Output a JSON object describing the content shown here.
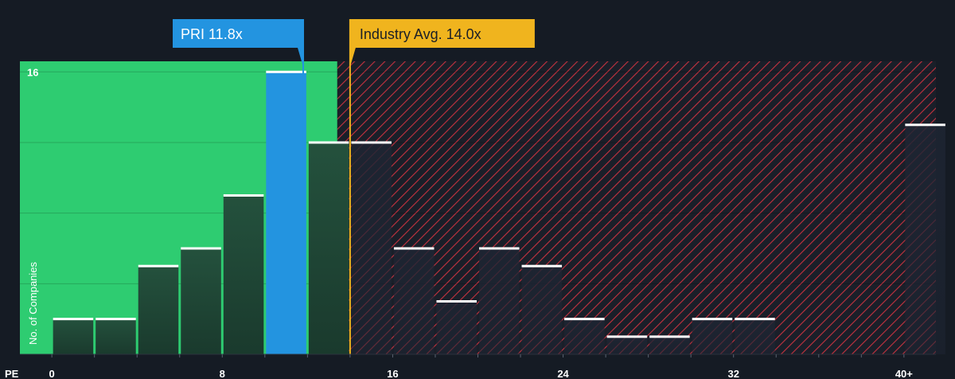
{
  "chart_data": {
    "type": "bar",
    "xlabel": "PE",
    "ylabel": "No. of Companies",
    "x_ticks": [
      "0",
      "8",
      "16",
      "24",
      "32",
      "40+"
    ],
    "y_ticks": [
      "16"
    ],
    "xlim": [
      -1.5,
      41.5
    ],
    "ylim": [
      0,
      16.6
    ],
    "bin_width": 2,
    "bins": [
      {
        "x0": 0,
        "value": 2
      },
      {
        "x0": 2,
        "value": 2
      },
      {
        "x0": 4,
        "value": 5
      },
      {
        "x0": 6,
        "value": 6
      },
      {
        "x0": 8,
        "value": 9
      },
      {
        "x0": 10,
        "value": 16
      },
      {
        "x0": 12,
        "value": 12
      },
      {
        "x0": 14,
        "value": 12
      },
      {
        "x0": 16,
        "value": 6
      },
      {
        "x0": 18,
        "value": 3
      },
      {
        "x0": 20,
        "value": 6
      },
      {
        "x0": 22,
        "value": 5
      },
      {
        "x0": 24,
        "value": 2
      },
      {
        "x0": 26,
        "value": 1
      },
      {
        "x0": 28,
        "value": 1
      },
      {
        "x0": 30,
        "value": 2
      },
      {
        "x0": 32,
        "value": 2
      },
      {
        "x0": 34,
        "value": 0
      },
      {
        "x0": 36,
        "value": 0
      },
      {
        "x0": 38,
        "value": 0
      },
      {
        "x0": 40,
        "value": 13
      }
    ],
    "highlight_bin_x0": 10,
    "company": {
      "label": "PRI 11.8x",
      "pe": 11.8
    },
    "industry_avg": {
      "label": "Industry Avg. 14.0x",
      "pe": 14.0
    },
    "fair_zone_max_pe": 13.4,
    "gridlines": [
      4,
      8,
      12,
      16
    ],
    "colors": {
      "background": "#151b24",
      "undervalued_zone": "#2ecc71",
      "bar_dark": "#1f4535",
      "company_bar": "#2394e0",
      "industry_line": "#f0b41e",
      "overvalued_hatch": "#c4323f",
      "bar_cap": "#ffffff"
    }
  }
}
